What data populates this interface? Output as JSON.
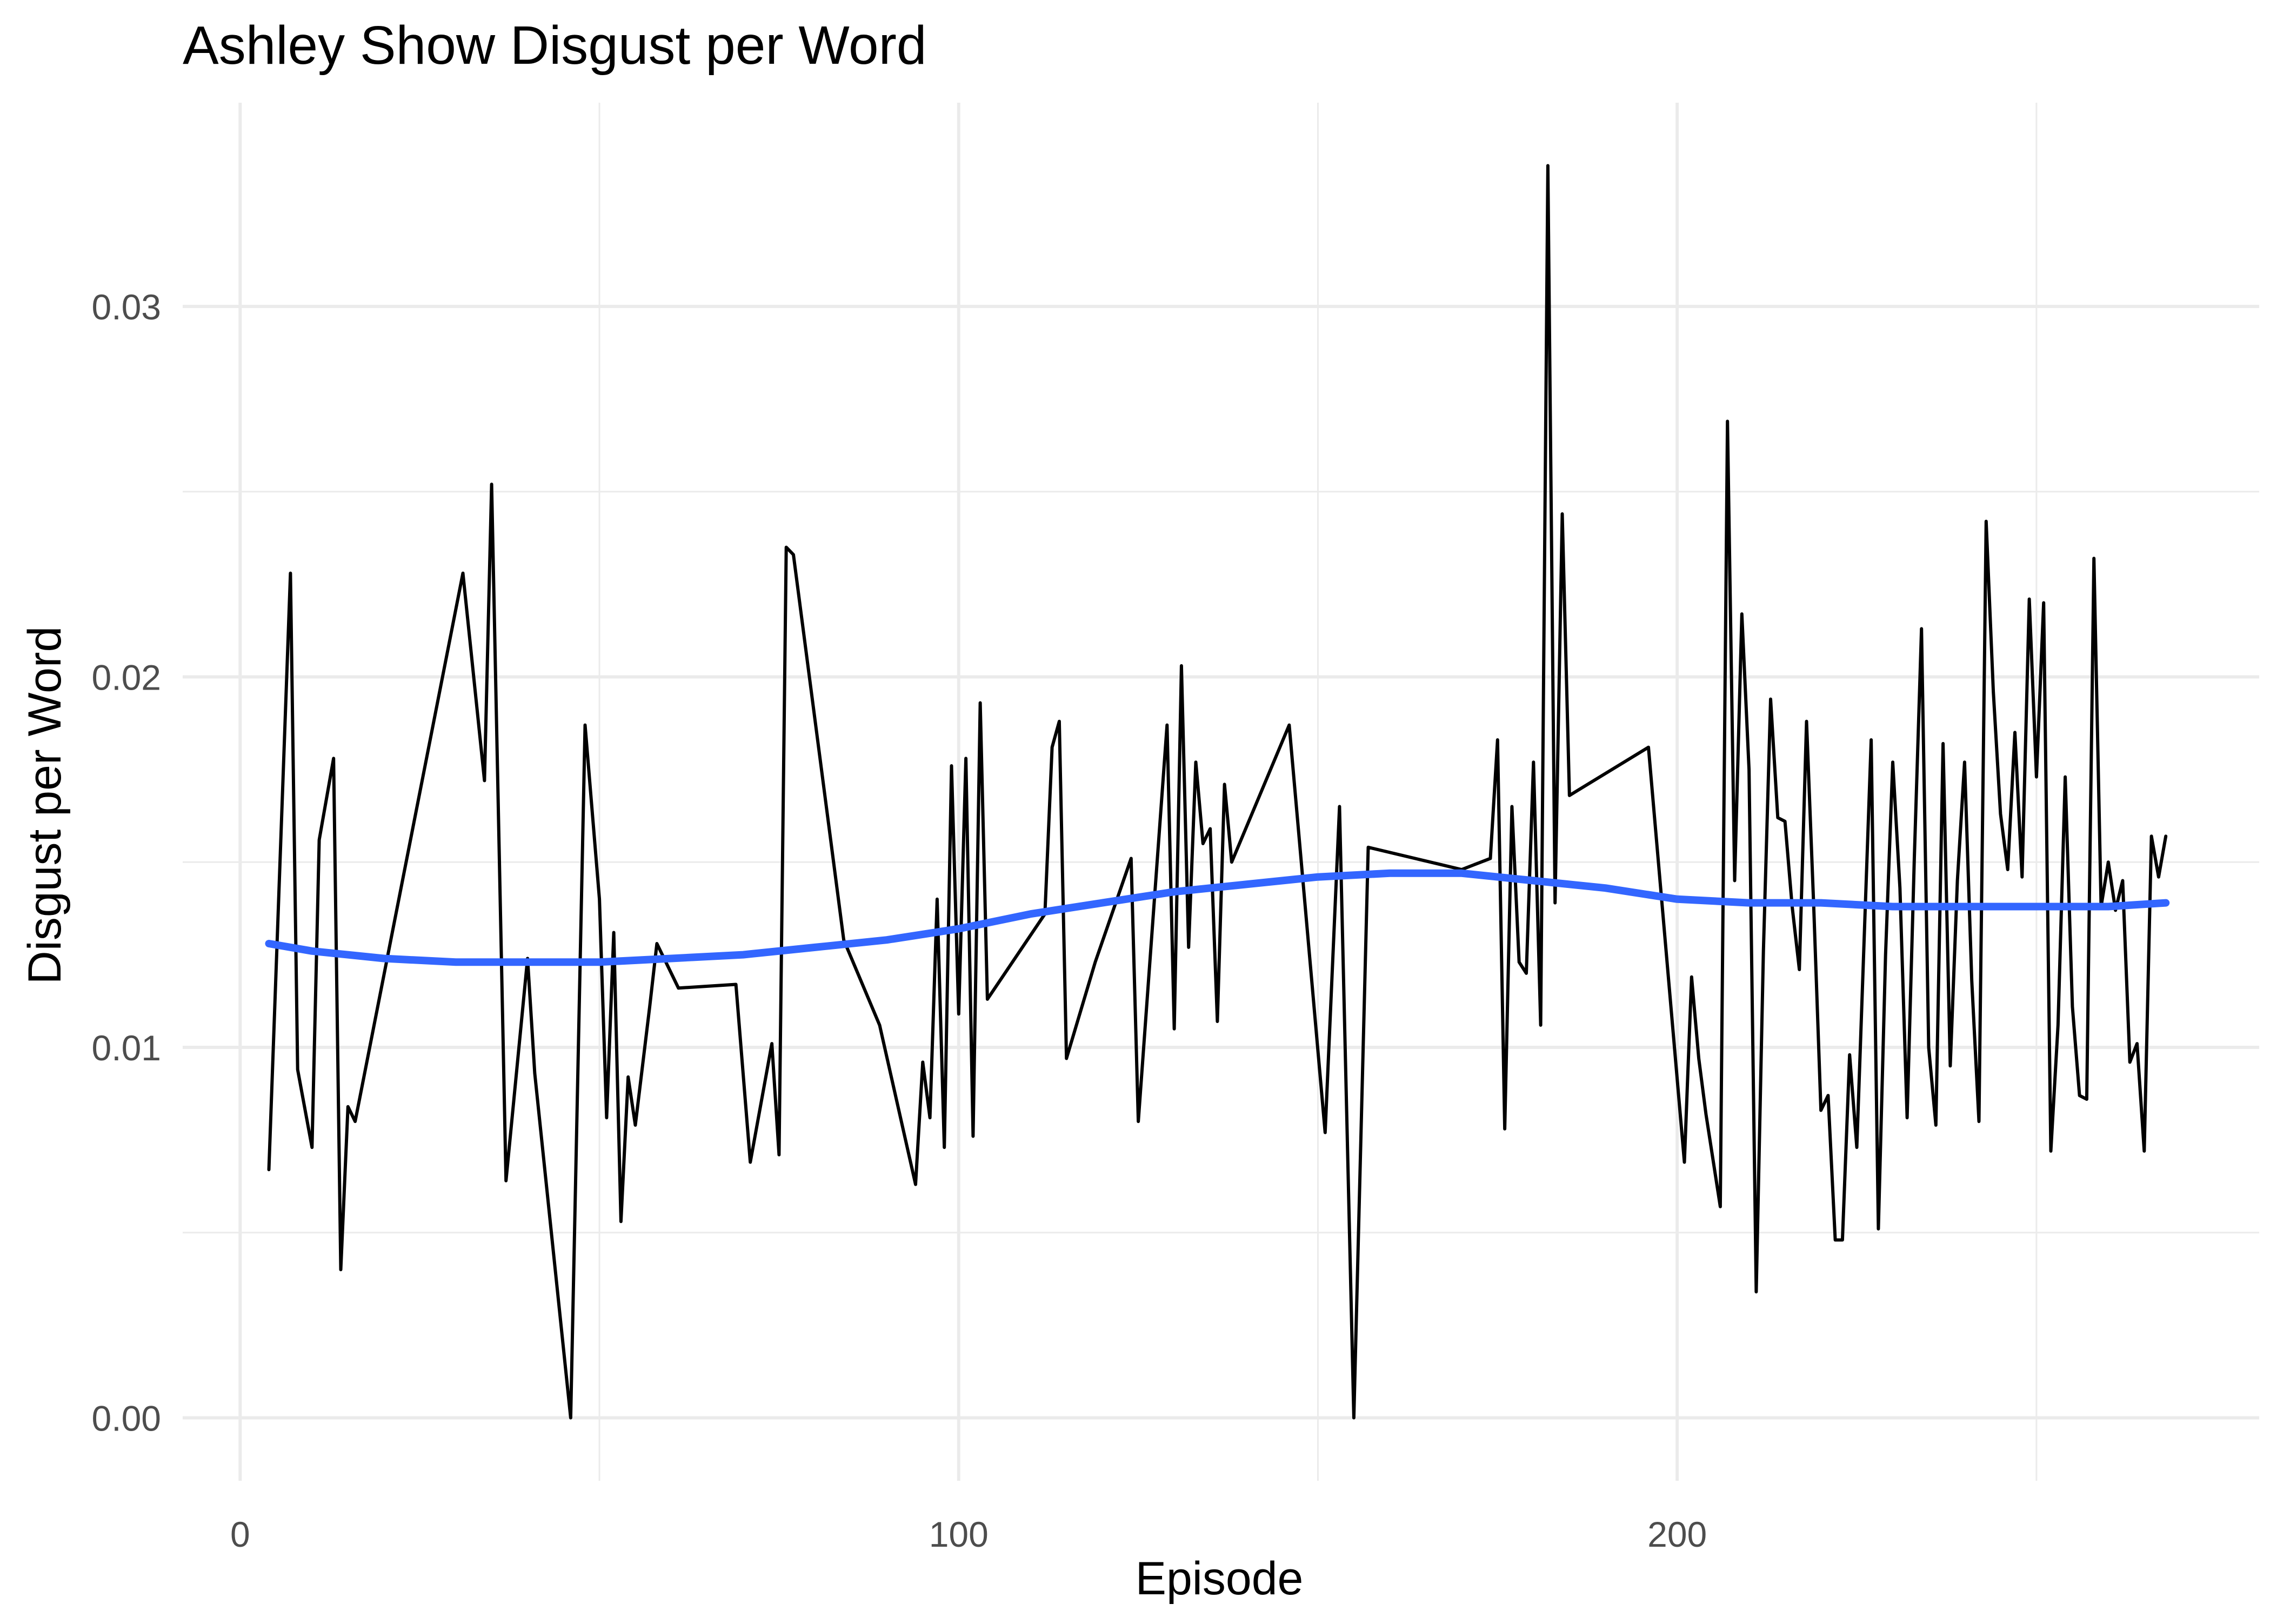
{
  "chart_data": {
    "type": "line",
    "title": "Ashley Show Disgust per Word",
    "xlabel": "Episode",
    "ylabel": "Disgust per Word",
    "xlim": [
      -8,
      281
    ],
    "ylim": [
      -0.0017,
      0.0355
    ],
    "x_ticks": [
      0,
      100,
      200
    ],
    "x_tick_labels": [
      "0",
      "100",
      "200"
    ],
    "x_minor_ticks": [
      50,
      150,
      250
    ],
    "y_ticks": [
      0.0,
      0.01,
      0.02,
      0.03
    ],
    "y_tick_labels": [
      "0.00",
      "0.01",
      "0.02",
      "0.03"
    ],
    "y_minor_ticks": [
      0.005,
      0.015,
      0.025
    ],
    "grid": true,
    "legend": "none",
    "colors": {
      "raw_line": "#000000",
      "smooth_line": "#3366FF",
      "grid": "#EBEBEB",
      "background": "#FFFFFF"
    },
    "series": [
      {
        "x": [
          4,
          7,
          8,
          10,
          11,
          13,
          14,
          15,
          16,
          31,
          34,
          35,
          37,
          40,
          41,
          46,
          48,
          50,
          51,
          52,
          53,
          54,
          55,
          57,
          58,
          61,
          69,
          71,
          74,
          75,
          76,
          77,
          84,
          89,
          94,
          95,
          96,
          97,
          98,
          99,
          100,
          101,
          102,
          103,
          104,
          112,
          113,
          114,
          115,
          119,
          124,
          125,
          129,
          130,
          131,
          132,
          133,
          134,
          135,
          136,
          137,
          138,
          146,
          151,
          153,
          155,
          157,
          170,
          174,
          175,
          176,
          177,
          178,
          179,
          180,
          181,
          182,
          183,
          184,
          185,
          196,
          201,
          202,
          203,
          204,
          206,
          207,
          208,
          209,
          210,
          211,
          212,
          213,
          214,
          215,
          216,
          217,
          218,
          219,
          220,
          221,
          222,
          223,
          224,
          225,
          226,
          227,
          228,
          229,
          230,
          231,
          232,
          233,
          234,
          235,
          236,
          237,
          238,
          239,
          240,
          241,
          242,
          243,
          244,
          245,
          246,
          247,
          248,
          249,
          250,
          251,
          252,
          253,
          254,
          255,
          256,
          257,
          258,
          259,
          260,
          261,
          262,
          263,
          264,
          265,
          266,
          267,
          268
        ],
        "values": [
          0.0067,
          0.0228,
          0.0094,
          0.0073,
          0.0156,
          0.0178,
          0.004,
          0.0084,
          0.008,
          0.0228,
          0.0172,
          0.0252,
          0.0064,
          0.0124,
          0.0093,
          0.0,
          0.0187,
          0.014,
          0.0081,
          0.0131,
          0.0053,
          0.0092,
          0.0079,
          0.0111,
          0.0128,
          0.0116,
          0.0117,
          0.0069,
          0.0101,
          0.0071,
          0.0235,
          0.0233,
          0.0129,
          0.0106,
          0.0063,
          0.0096,
          0.0081,
          0.014,
          0.0073,
          0.0176,
          0.0109,
          0.0178,
          0.0076,
          0.0193,
          0.0113,
          0.0136,
          0.0181,
          0.0188,
          0.0097,
          0.0123,
          0.0151,
          0.008,
          0.0187,
          0.0105,
          0.0203,
          0.0127,
          0.0177,
          0.0155,
          0.0159,
          0.0107,
          0.0171,
          0.015,
          0.0187,
          0.0077,
          0.0165,
          0.0,
          0.0154,
          0.0148,
          0.0151,
          0.0183,
          0.0078,
          0.0165,
          0.0123,
          0.012,
          0.0177,
          0.0106,
          0.0338,
          0.0139,
          0.0244,
          0.0168,
          0.0181,
          0.0069,
          0.0119,
          0.0097,
          0.0082,
          0.0057,
          0.0269,
          0.0145,
          0.0217,
          0.0175,
          0.0034,
          0.0126,
          0.0194,
          0.0162,
          0.0161,
          0.0138,
          0.0121,
          0.0188,
          0.0138,
          0.0083,
          0.0087,
          0.0048,
          0.0048,
          0.0098,
          0.0073,
          0.0128,
          0.0183,
          0.0051,
          0.0125,
          0.0177,
          0.0143,
          0.0081,
          0.0151,
          0.0213,
          0.01,
          0.0079,
          0.0182,
          0.0095,
          0.0145,
          0.0177,
          0.0118,
          0.008,
          0.0242,
          0.0196,
          0.0163,
          0.0148,
          0.0185,
          0.0146,
          0.0221,
          0.0173,
          0.022,
          0.0072,
          0.0106,
          0.0173,
          0.0111,
          0.0087,
          0.0086,
          0.0232,
          0.0138,
          0.015,
          0.0137,
          0.0145,
          0.0096,
          0.0101,
          0.0072,
          0.0157,
          0.0146,
          0.0157
        ]
      },
      {
        "x": [
          4,
          10,
          20,
          30,
          40,
          50,
          60,
          70,
          80,
          90,
          100,
          110,
          120,
          130,
          140,
          150,
          160,
          170,
          180,
          190,
          200,
          210,
          220,
          230,
          240,
          250,
          260,
          268
        ],
        "values": [
          0.0128,
          0.0126,
          0.0124,
          0.0123,
          0.0123,
          0.0123,
          0.0124,
          0.0125,
          0.0127,
          0.0129,
          0.0132,
          0.0136,
          0.0139,
          0.0142,
          0.0144,
          0.0146,
          0.0147,
          0.0147,
          0.0145,
          0.0143,
          0.014,
          0.0139,
          0.0139,
          0.0138,
          0.0138,
          0.0138,
          0.0138,
          0.0139
        ]
      }
    ]
  }
}
